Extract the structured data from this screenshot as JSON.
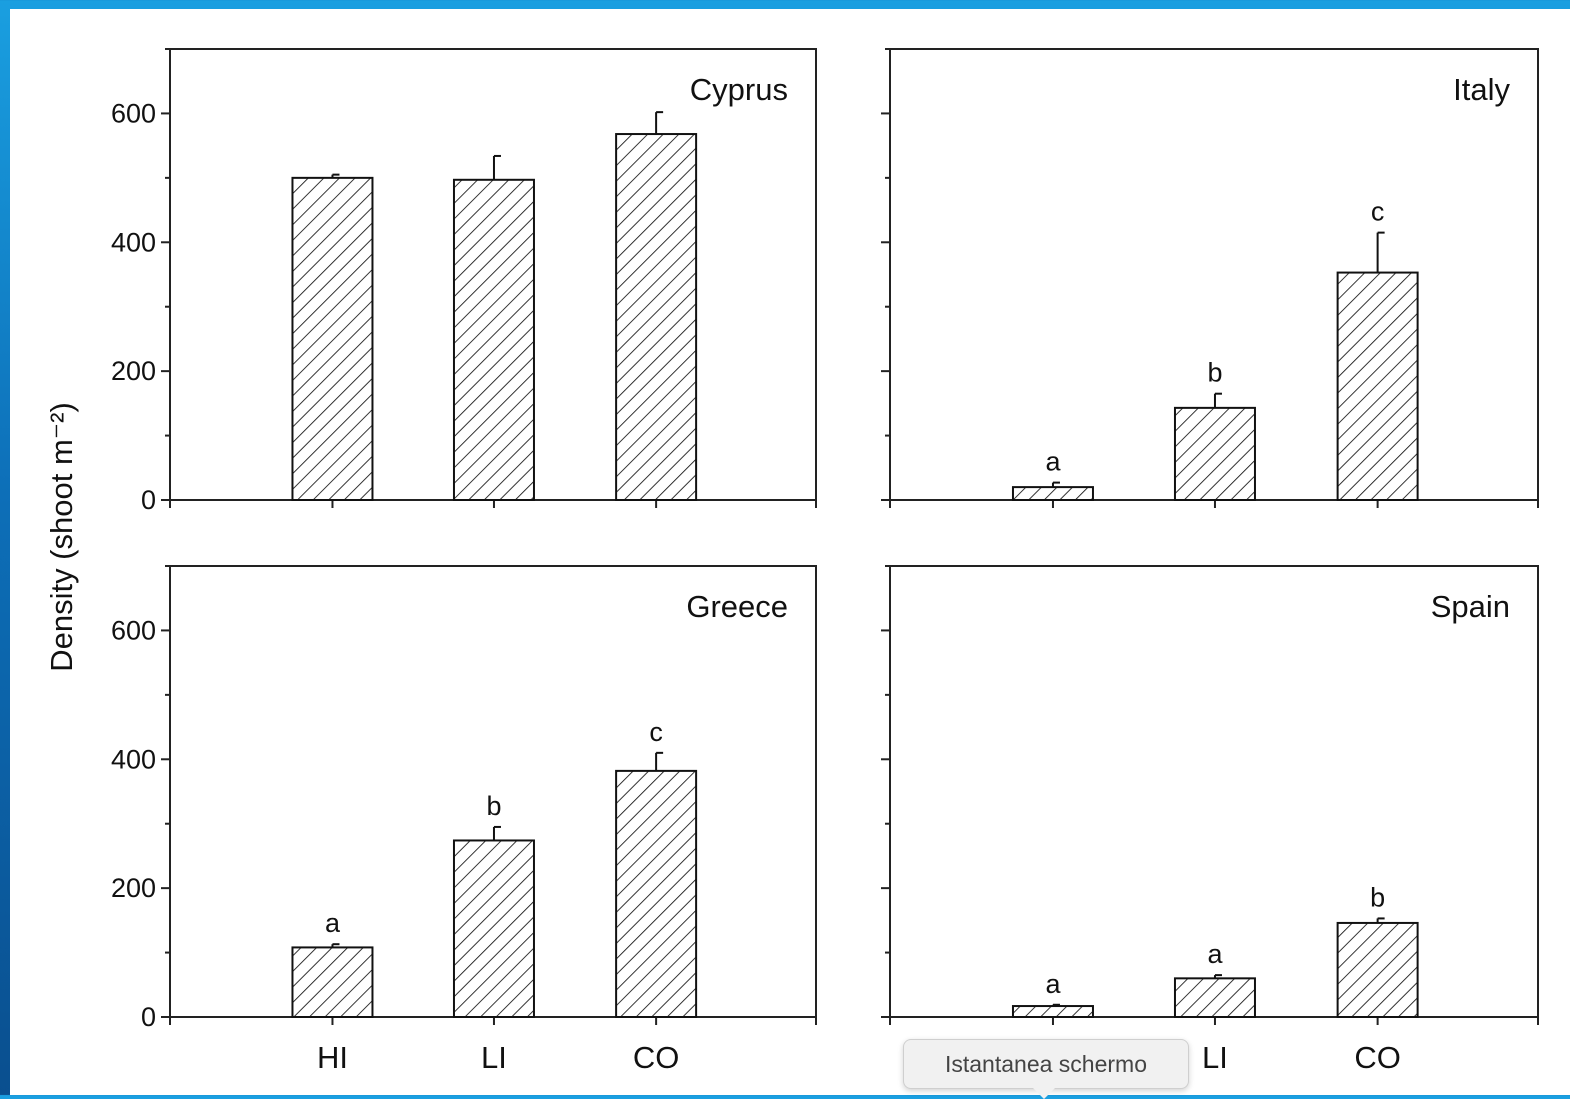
{
  "chart_data": {
    "type": "bar",
    "ylabel": "Density (shoot m⁻²)",
    "xlabel": "",
    "categories": [
      "HI",
      "LI",
      "CO"
    ],
    "ylim": [
      0,
      700
    ],
    "yticks": [
      0,
      200,
      400,
      600
    ],
    "pattern": "diagonal-hatch",
    "panels": [
      {
        "title": "Cyprus",
        "values": [
          500,
          497,
          568
        ],
        "errors": [
          5,
          37,
          34
        ],
        "letters": [
          "",
          "",
          ""
        ]
      },
      {
        "title": "Italy",
        "values": [
          20,
          143,
          353
        ],
        "errors": [
          7,
          22,
          62
        ],
        "letters": [
          "a",
          "b",
          "c"
        ]
      },
      {
        "title": "Greece",
        "values": [
          108,
          274,
          382
        ],
        "errors": [
          5,
          21,
          28
        ],
        "letters": [
          "a",
          "b",
          "c"
        ]
      },
      {
        "title": "Spain",
        "values": [
          17,
          60,
          146
        ],
        "errors": [
          2,
          5,
          7
        ],
        "letters": [
          "a",
          "a",
          "b"
        ]
      }
    ]
  },
  "tooltip": {
    "text": "Istantanea schermo"
  }
}
